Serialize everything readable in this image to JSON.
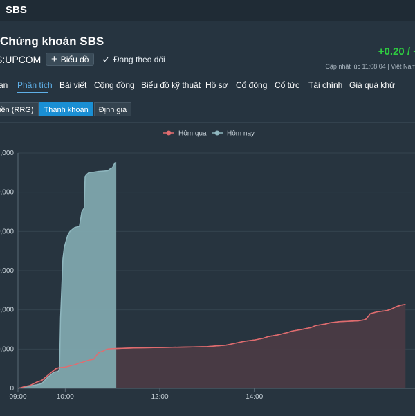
{
  "header": {
    "app_title": "SBS"
  },
  "stock": {
    "title": "Chứng khoán SBS",
    "ticker": "S:UPCOM",
    "chart_button": "Biểu đồ",
    "follow": "Đang theo dõi",
    "change": "+0.20 / +",
    "updated": "Cập nhật lúc  11:08:04 | Việt Nam"
  },
  "tabs": [
    "an",
    "Phân tích",
    "Bài viết",
    "Cộng đồng",
    "Biểu đồ kỹ thuật",
    "Hồ sơ",
    "Cổ đông",
    "Cổ tức",
    "Tài chính",
    "Giá quá khứ"
  ],
  "subtabs": [
    "iền (RRG)",
    "Thanh khoản",
    "Định giá"
  ],
  "colors": {
    "yesterday": "#e06c6f",
    "today": "#8fb7bf",
    "accent": "#1a8fd4",
    "up": "#2ecc40"
  },
  "chart_data": {
    "type": "area",
    "title": "",
    "xlabel": "",
    "ylabel": "",
    "x_ticks": [
      "09:00",
      "10:00",
      "12:00",
      "14:00"
    ],
    "y_ticks": [
      ",000",
      "0,000",
      "0,000",
      "0,000",
      "0,000",
      "0,000",
      "0"
    ],
    "ylim": [
      0,
      6
    ],
    "legend": "top-center",
    "series": [
      {
        "name": "Hôm qua",
        "color": "#e06c6f",
        "points": [
          [
            0,
            0
          ],
          [
            0.05,
            0.01
          ],
          [
            0.1,
            0.03
          ],
          [
            0.15,
            0.05
          ],
          [
            0.2,
            0.06
          ],
          [
            0.25,
            0.07
          ],
          [
            0.3,
            0.1
          ],
          [
            0.35,
            0.13
          ],
          [
            0.4,
            0.16
          ],
          [
            0.45,
            0.18
          ],
          [
            0.5,
            0.2
          ],
          [
            0.55,
            0.25
          ],
          [
            0.6,
            0.3
          ],
          [
            0.65,
            0.35
          ],
          [
            0.7,
            0.4
          ],
          [
            0.75,
            0.45
          ],
          [
            0.8,
            0.5
          ],
          [
            0.85,
            0.52
          ],
          [
            0.9,
            0.53
          ],
          [
            1.0,
            0.54
          ],
          [
            1.1,
            0.57
          ],
          [
            1.2,
            0.6
          ],
          [
            1.25,
            0.62
          ],
          [
            1.3,
            0.65
          ],
          [
            1.35,
            0.66
          ],
          [
            1.4,
            0.68
          ],
          [
            1.5,
            0.72
          ],
          [
            1.6,
            0.74
          ],
          [
            1.7,
            0.9
          ],
          [
            1.75,
            0.93
          ],
          [
            1.8,
            0.95
          ],
          [
            1.85,
            0.98
          ],
          [
            1.9,
            1.0
          ],
          [
            2.0,
            1.01
          ],
          [
            2.2,
            1.02
          ],
          [
            2.5,
            1.03
          ],
          [
            3,
            1.04
          ],
          [
            3.5,
            1.05
          ],
          [
            4,
            1.06
          ],
          [
            4.2,
            1.08
          ],
          [
            4.4,
            1.1
          ],
          [
            4.6,
            1.15
          ],
          [
            4.8,
            1.2
          ],
          [
            5,
            1.23
          ],
          [
            5.2,
            1.28
          ],
          [
            5.3,
            1.32
          ],
          [
            5.5,
            1.36
          ],
          [
            5.6,
            1.39
          ],
          [
            5.7,
            1.42
          ],
          [
            5.8,
            1.46
          ],
          [
            6,
            1.5
          ],
          [
            6.2,
            1.55
          ],
          [
            6.3,
            1.6
          ],
          [
            6.4,
            1.62
          ],
          [
            6.5,
            1.64
          ],
          [
            6.6,
            1.67
          ],
          [
            6.8,
            1.7
          ],
          [
            7,
            1.71
          ],
          [
            7.2,
            1.72
          ],
          [
            7.35,
            1.75
          ],
          [
            7.4,
            1.82
          ],
          [
            7.45,
            1.9
          ],
          [
            7.6,
            1.95
          ],
          [
            7.8,
            1.98
          ],
          [
            7.9,
            2.02
          ],
          [
            8.0,
            2.08
          ],
          [
            8.1,
            2.12
          ],
          [
            8.2,
            2.14
          ]
        ]
      },
      {
        "name": "Hôm nay",
        "color": "#8fb7bf",
        "points": [
          [
            0,
            0
          ],
          [
            0.05,
            0.01
          ],
          [
            0.1,
            0.03
          ],
          [
            0.2,
            0.05
          ],
          [
            0.3,
            0.07
          ],
          [
            0.4,
            0.09
          ],
          [
            0.5,
            0.12
          ],
          [
            0.55,
            0.18
          ],
          [
            0.6,
            0.25
          ],
          [
            0.65,
            0.3
          ],
          [
            0.7,
            0.35
          ],
          [
            0.75,
            0.4
          ],
          [
            0.8,
            0.42
          ],
          [
            0.85,
            0.43
          ],
          [
            0.88,
            0.5
          ],
          [
            0.9,
            1.8
          ],
          [
            0.92,
            2.4
          ],
          [
            0.95,
            3.3
          ],
          [
            0.98,
            3.6
          ],
          [
            1.05,
            3.9
          ],
          [
            1.1,
            4.0
          ],
          [
            1.15,
            4.05
          ],
          [
            1.2,
            4.1
          ],
          [
            1.3,
            4.13
          ],
          [
            1.35,
            4.5
          ],
          [
            1.4,
            4.6
          ],
          [
            1.42,
            5.4
          ],
          [
            1.45,
            5.45
          ],
          [
            1.5,
            5.5
          ],
          [
            1.6,
            5.51
          ],
          [
            1.7,
            5.53
          ],
          [
            1.8,
            5.54
          ],
          [
            1.9,
            5.55
          ],
          [
            1.95,
            5.6
          ],
          [
            2.0,
            5.63
          ],
          [
            2.05,
            5.75
          ],
          [
            2.08,
            5.76
          ]
        ]
      }
    ],
    "x_range": [
      0,
      8.4
    ]
  }
}
